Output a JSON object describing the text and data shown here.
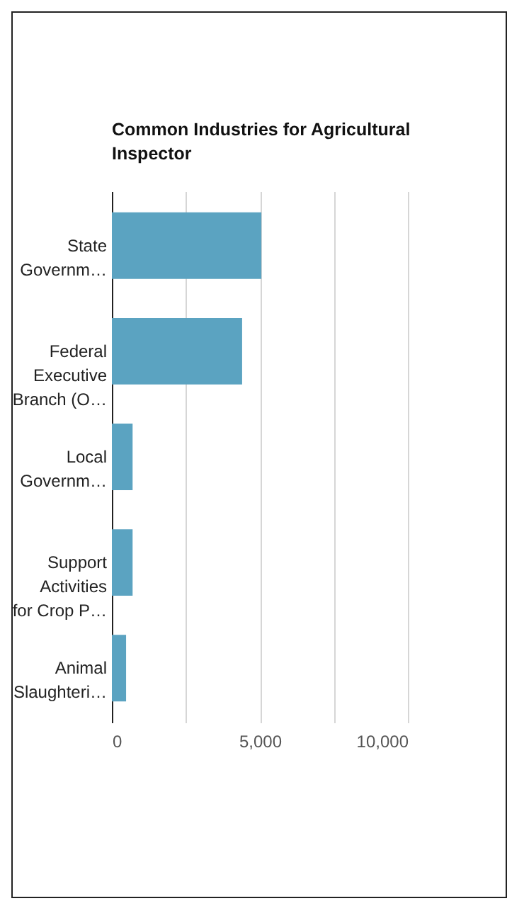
{
  "chart_data": {
    "type": "bar",
    "orientation": "horizontal",
    "title": "Common Industries for Agricultural Inspector",
    "categories": [
      "State Governm…",
      "Federal Executive Branch (O…",
      "Local Governm…",
      "Support Activities for Crop P…",
      "Animal Slaughteri…"
    ],
    "values": [
      5050,
      4400,
      700,
      700,
      480
    ],
    "color": "#5ba3c1",
    "xlim": [
      0,
      10000
    ],
    "xticks": [
      0,
      {
        "value": 2500,
        "label": null
      },
      {
        "value": 5000,
        "label": "5,000"
      },
      {
        "value": 7500,
        "label": null
      },
      {
        "value": 10000,
        "label": "10,000"
      }
    ],
    "grid": "x"
  }
}
